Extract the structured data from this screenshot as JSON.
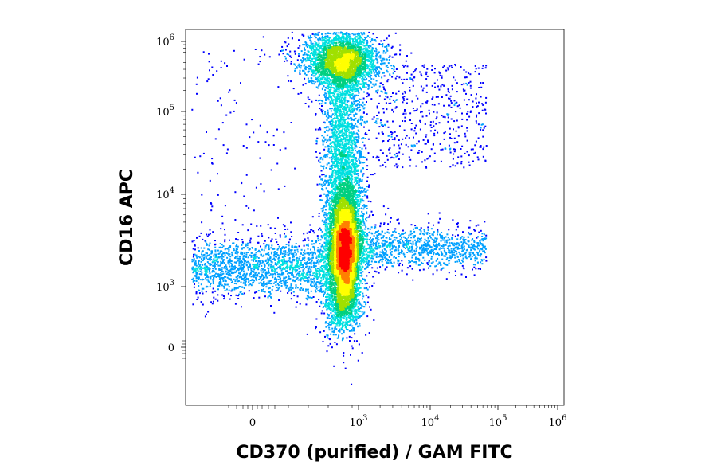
{
  "chart_data": {
    "type": "scatter",
    "subtype": "flow-cytometry density dot plot (pseudocolor)",
    "xlabel": "CD370 (purified) / GAM FITC",
    "ylabel": "CD16 APC",
    "x_scale": "biexponential (logicle)",
    "y_scale": "biexponential (logicle)",
    "xlim": [
      -300,
      1000000
    ],
    "ylim": [
      -300,
      1000000
    ],
    "x_ticks": [
      {
        "base": "0",
        "exp": ""
      },
      {
        "base": "10",
        "exp": "3"
      },
      {
        "base": "10",
        "exp": "4"
      },
      {
        "base": "10",
        "exp": "5"
      },
      {
        "base": "10",
        "exp": "6"
      }
    ],
    "y_ticks": [
      {
        "base": "0",
        "exp": ""
      },
      {
        "base": "10",
        "exp": "3"
      },
      {
        "base": "10",
        "exp": "4"
      },
      {
        "base": "10",
        "exp": "5"
      },
      {
        "base": "10",
        "exp": "6"
      }
    ],
    "grid": false,
    "colormap": [
      "#0000ff",
      "#00a0ff",
      "#00e0e0",
      "#00d080",
      "#a0e000",
      "#ffff00",
      "#ff8000",
      "#ff0000"
    ],
    "populations": [
      {
        "label": "",
        "center": [
          800,
          2300
        ],
        "spread": "dense core, red peak",
        "density": "high"
      },
      {
        "label": "",
        "center": [
          900,
          500000
        ],
        "spread": "cyan cluster at top",
        "density": "medium"
      },
      {
        "label": "",
        "center": [
          800,
          30000
        ],
        "spread": "vertical stream between clusters",
        "density": "medium"
      },
      {
        "label": "",
        "center": [
          50,
          1800
        ],
        "spread": "horizontal band left of main population",
        "density": "low"
      },
      {
        "label": "",
        "center": [
          10000,
          2500
        ],
        "spread": "horizontal band right of main population",
        "density": "low"
      },
      {
        "label": "",
        "center": [
          10000,
          150000
        ],
        "spread": "diffuse scatter upper right",
        "density": "low"
      }
    ]
  }
}
